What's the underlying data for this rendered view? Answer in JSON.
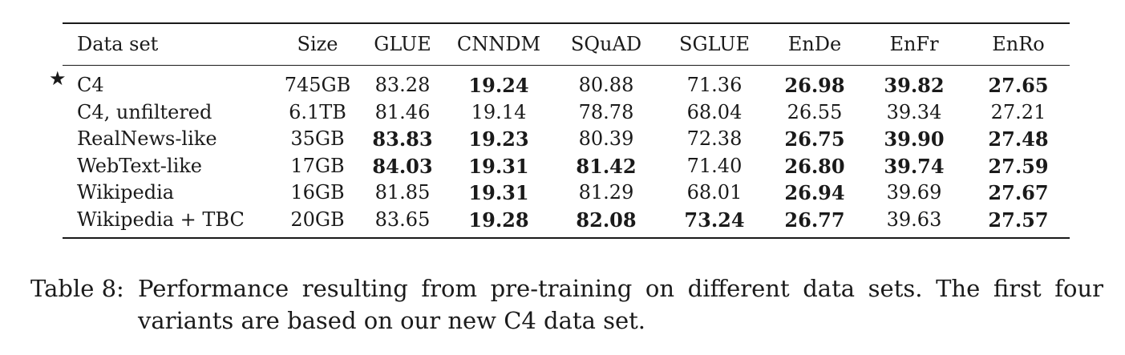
{
  "table": {
    "headers": [
      "Data set",
      "Size",
      "GLUE",
      "CNNDM",
      "SQuAD",
      "SGLUE",
      "EnDe",
      "EnFr",
      "EnRo"
    ],
    "marker": "★",
    "rows": [
      {
        "name": "C4",
        "marked": true,
        "cells": [
          "745GB",
          "83.28",
          "19.24",
          "80.88",
          "71.36",
          "26.98",
          "39.82",
          "27.65"
        ],
        "bold": [
          false,
          false,
          true,
          false,
          false,
          true,
          true,
          true
        ]
      },
      {
        "name": "C4, unfiltered",
        "marked": false,
        "cells": [
          "6.1TB",
          "81.46",
          "19.14",
          "78.78",
          "68.04",
          "26.55",
          "39.34",
          "27.21"
        ],
        "bold": [
          false,
          false,
          false,
          false,
          false,
          false,
          false,
          false
        ]
      },
      {
        "name": "RealNews-like",
        "marked": false,
        "cells": [
          "35GB",
          "83.83",
          "19.23",
          "80.39",
          "72.38",
          "26.75",
          "39.90",
          "27.48"
        ],
        "bold": [
          false,
          true,
          true,
          false,
          false,
          true,
          true,
          true
        ]
      },
      {
        "name": "WebText-like",
        "marked": false,
        "cells": [
          "17GB",
          "84.03",
          "19.31",
          "81.42",
          "71.40",
          "26.80",
          "39.74",
          "27.59"
        ],
        "bold": [
          false,
          true,
          true,
          true,
          false,
          true,
          true,
          true
        ]
      },
      {
        "name": "Wikipedia",
        "marked": false,
        "cells": [
          "16GB",
          "81.85",
          "19.31",
          "81.29",
          "68.01",
          "26.94",
          "39.69",
          "27.67"
        ],
        "bold": [
          false,
          false,
          true,
          false,
          false,
          true,
          false,
          true
        ]
      },
      {
        "name": "Wikipedia + TBC",
        "marked": false,
        "cells": [
          "20GB",
          "83.65",
          "19.28",
          "82.08",
          "73.24",
          "26.77",
          "39.63",
          "27.57"
        ],
        "bold": [
          false,
          false,
          true,
          true,
          true,
          true,
          false,
          true
        ]
      }
    ]
  },
  "caption": {
    "label": "Table 8:",
    "text": "Performance resulting from pre-training on different data sets. The first four variants are based on our new C4 data set."
  }
}
